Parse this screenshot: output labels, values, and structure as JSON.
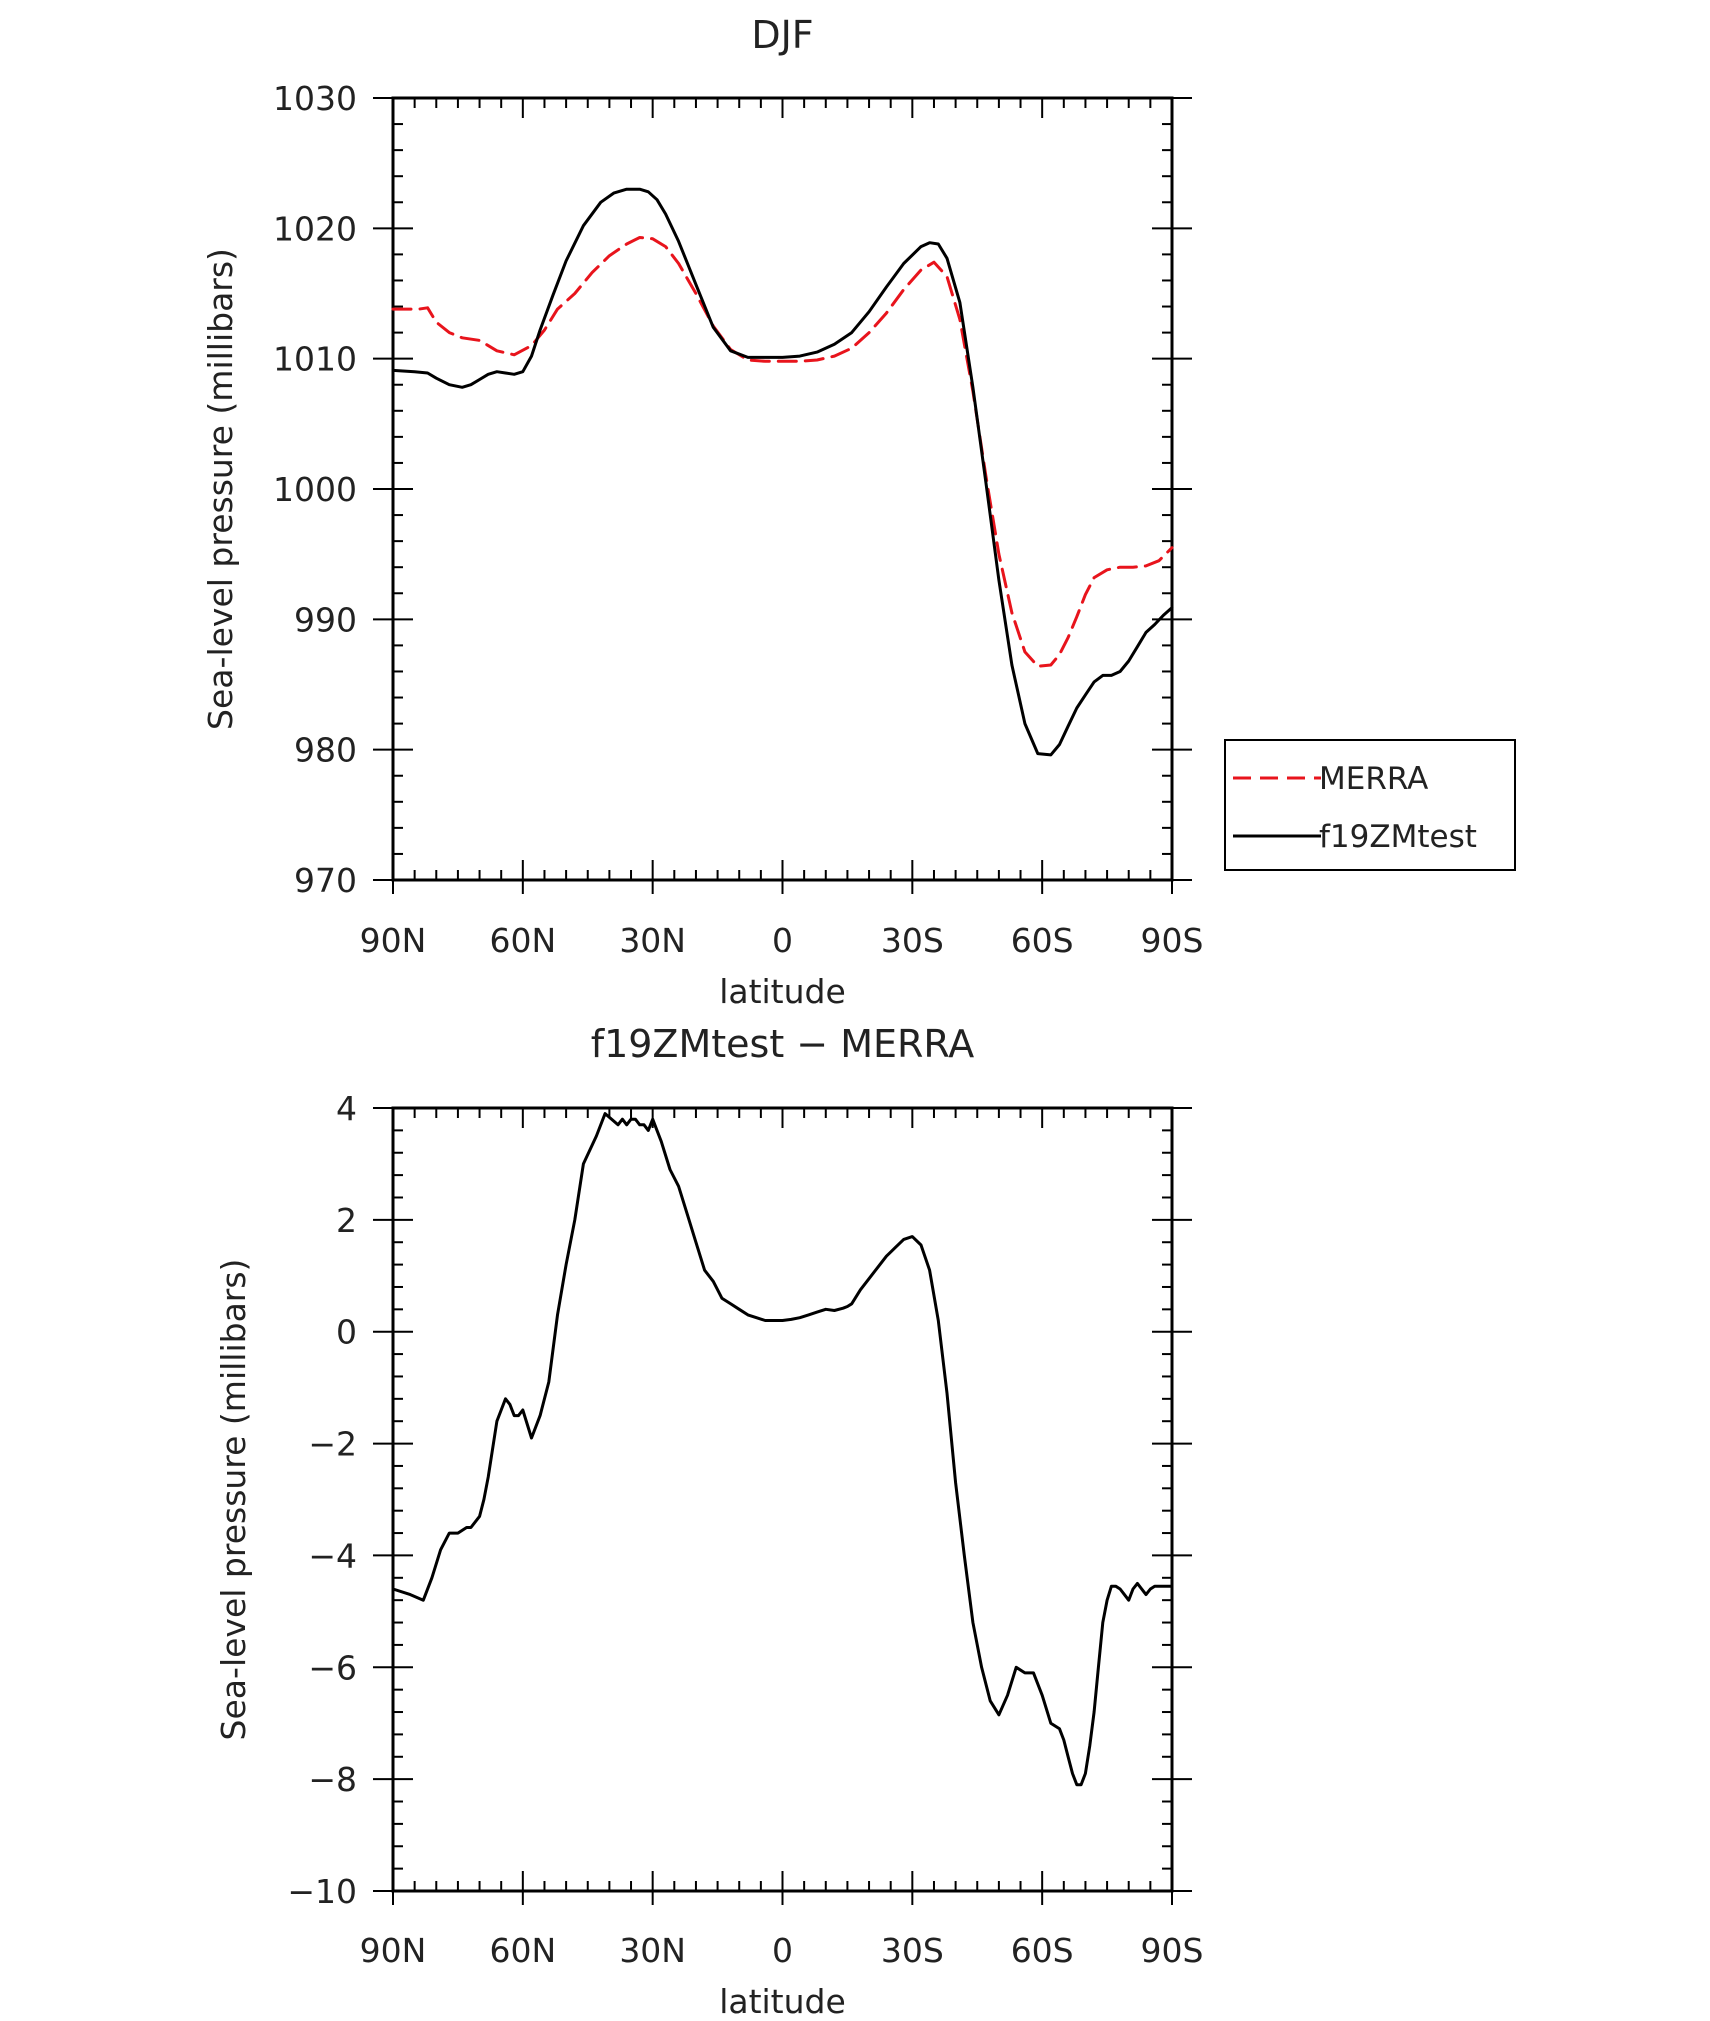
{
  "chart_data": [
    {
      "type": "line",
      "title": "DJF",
      "xlabel": "latitude",
      "ylabel": "Sea-level pressure (millibars)",
      "xlim": [
        90,
        -90
      ],
      "ylim": [
        970,
        1030
      ],
      "x_ticks": [
        90,
        60,
        30,
        0,
        -30,
        -60,
        -90
      ],
      "x_tick_labels": [
        "90N",
        "60N",
        "30N",
        "0",
        "30S",
        "60S",
        "90S"
      ],
      "y_ticks": [
        970,
        980,
        990,
        1000,
        1010,
        1020,
        1030
      ],
      "y_tick_labels": [
        "970",
        "980",
        "990",
        "1000",
        "1010",
        "1020",
        "1030"
      ],
      "legend_position": "right",
      "series": [
        {
          "name": "MERRA",
          "color": "#e8141c",
          "dash": "dashed",
          "x": [
            90,
            84,
            82,
            80,
            77,
            74,
            70,
            66,
            62,
            58,
            55,
            52,
            48,
            44,
            40,
            36,
            33,
            30,
            27,
            24,
            20,
            16,
            12,
            8,
            4,
            0,
            -4,
            -8,
            -12,
            -16,
            -20,
            -24,
            -28,
            -32,
            -35,
            -38,
            -41,
            -44,
            -47,
            -50,
            -53,
            -56,
            -59,
            -62,
            -64,
            -66,
            -68,
            -70,
            -72,
            -75,
            -78,
            -81,
            -84,
            -87,
            -90
          ],
          "y": [
            1013.8,
            1013.8,
            1013.9,
            1012.8,
            1012.0,
            1011.6,
            1011.4,
            1010.6,
            1010.3,
            1011.0,
            1012.2,
            1013.8,
            1015.0,
            1016.6,
            1017.9,
            1018.8,
            1019.3,
            1019.2,
            1018.6,
            1017.3,
            1015.0,
            1012.5,
            1010.7,
            1009.9,
            1009.8,
            1009.8,
            1009.8,
            1009.9,
            1010.2,
            1010.8,
            1012.0,
            1013.5,
            1015.3,
            1016.8,
            1017.4,
            1016.3,
            1013.0,
            1007.5,
            1001.0,
            995.0,
            990.5,
            987.5,
            986.4,
            986.5,
            987.3,
            988.6,
            990.2,
            991.9,
            993.2,
            993.8,
            994.0,
            994.0,
            994.1,
            994.5,
            995.5
          ]
        },
        {
          "name": "f19ZMtest",
          "color": "#000000",
          "dash": "solid",
          "x": [
            90,
            85,
            82,
            80,
            77,
            74,
            72,
            70,
            68,
            66,
            64,
            62,
            60,
            58,
            56,
            53,
            50,
            46,
            42,
            39,
            36,
            33,
            31,
            29,
            27,
            24,
            20,
            16,
            12,
            8,
            4,
            0,
            -4,
            -8,
            -12,
            -16,
            -20,
            -24,
            -28,
            -32,
            -34,
            -36,
            -38,
            -41,
            -44,
            -47,
            -50,
            -53,
            -56,
            -59,
            -62,
            -64,
            -66,
            -68,
            -70,
            -72,
            -74,
            -76,
            -78,
            -80,
            -82,
            -84,
            -86,
            -88,
            -90
          ],
          "y": [
            1009.1,
            1009.0,
            1008.9,
            1008.5,
            1008.0,
            1007.8,
            1008.0,
            1008.4,
            1008.8,
            1009.0,
            1008.9,
            1008.8,
            1009.0,
            1010.2,
            1012.2,
            1014.9,
            1017.5,
            1020.2,
            1022.0,
            1022.7,
            1023.0,
            1023.0,
            1022.8,
            1022.2,
            1021.1,
            1019.0,
            1015.7,
            1012.4,
            1010.6,
            1010.1,
            1010.1,
            1010.1,
            1010.2,
            1010.5,
            1011.1,
            1012.0,
            1013.6,
            1015.5,
            1017.3,
            1018.6,
            1018.9,
            1018.8,
            1017.7,
            1014.3,
            1007.8,
            1000.5,
            993.0,
            986.5,
            982.0,
            979.7,
            979.6,
            980.4,
            981.8,
            983.2,
            984.2,
            985.2,
            985.7,
            985.7,
            986.0,
            986.8,
            987.9,
            989.0,
            989.6,
            990.3,
            990.9
          ]
        }
      ]
    },
    {
      "type": "line",
      "title": "f19ZMtest − MERRA",
      "xlabel": "latitude",
      "ylabel": "Sea-level pressure (millibars)",
      "xlim": [
        90,
        -90
      ],
      "ylim": [
        -10,
        4
      ],
      "x_ticks": [
        90,
        60,
        30,
        0,
        -30,
        -60,
        -90
      ],
      "x_tick_labels": [
        "90N",
        "60N",
        "30N",
        "0",
        "30S",
        "60S",
        "90S"
      ],
      "y_ticks": [
        -10,
        -8,
        -6,
        -4,
        -2,
        0,
        2,
        4
      ],
      "y_tick_labels": [
        "−10",
        "−8",
        "−6",
        "−4",
        "−2",
        "0",
        "2",
        "4"
      ],
      "series": [
        {
          "name": "",
          "color": "#000000",
          "dash": "solid",
          "x": [
            90,
            86,
            83,
            81,
            79,
            77,
            75,
            73,
            72,
            70,
            69,
            68,
            66,
            65,
            64,
            63,
            62,
            61,
            60,
            58,
            56,
            54,
            52,
            50,
            48,
            46,
            43,
            41,
            38,
            37,
            36,
            35,
            34,
            33,
            32,
            31,
            30,
            29,
            28,
            26,
            24,
            22,
            20,
            18,
            16,
            14,
            12,
            10,
            8,
            6,
            4,
            2,
            0,
            -2,
            -4,
            -6,
            -8,
            -10,
            -12,
            -14,
            -15,
            -16,
            -18,
            -20,
            -22,
            -24,
            -26,
            -28,
            -30,
            -32,
            -34,
            -36,
            -38,
            -40,
            -42,
            -44,
            -46,
            -48,
            -50,
            -52,
            -54,
            -56,
            -58,
            -60,
            -62,
            -64,
            -65,
            -66,
            -67,
            -68,
            -69,
            -70,
            -71,
            -72,
            -73,
            -74,
            -75,
            -76,
            -77,
            -78,
            -79,
            -80,
            -81,
            -82,
            -83,
            -84,
            -85,
            -86,
            -87,
            -88,
            -89,
            -90
          ],
          "y": [
            -4.6,
            -4.7,
            -4.8,
            -4.4,
            -3.9,
            -3.6,
            -3.6,
            -3.5,
            -3.5,
            -3.3,
            -3.0,
            -2.6,
            -1.6,
            -1.4,
            -1.2,
            -1.3,
            -1.5,
            -1.5,
            -1.4,
            -1.9,
            -1.5,
            -0.9,
            0.3,
            1.2,
            2.0,
            3.0,
            3.5,
            3.9,
            3.7,
            3.8,
            3.7,
            3.8,
            3.8,
            3.7,
            3.7,
            3.6,
            3.8,
            3.6,
            3.4,
            2.9,
            2.6,
            2.1,
            1.6,
            1.1,
            0.9,
            0.6,
            0.5,
            0.4,
            0.3,
            0.25,
            0.2,
            0.2,
            0.2,
            0.22,
            0.25,
            0.3,
            0.35,
            0.4,
            0.38,
            0.42,
            0.45,
            0.5,
            0.75,
            0.95,
            1.15,
            1.35,
            1.5,
            1.65,
            1.7,
            1.55,
            1.1,
            0.2,
            -1.1,
            -2.7,
            -4.0,
            -5.2,
            -6.0,
            -6.6,
            -6.85,
            -6.5,
            -6.0,
            -6.1,
            -6.1,
            -6.5,
            -7.0,
            -7.1,
            -7.3,
            -7.6,
            -7.9,
            -8.1,
            -8.1,
            -7.9,
            -7.4,
            -6.8,
            -6.0,
            -5.2,
            -4.8,
            -4.55,
            -4.55,
            -4.6,
            -4.7,
            -4.8,
            -4.6,
            -4.5,
            -4.6,
            -4.7,
            -4.6,
            -4.55,
            -4.55,
            -4.55,
            -4.55,
            -4.55
          ]
        }
      ]
    }
  ]
}
